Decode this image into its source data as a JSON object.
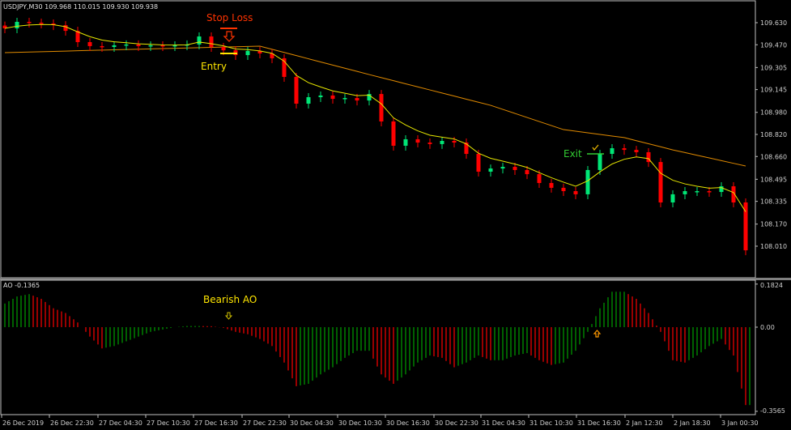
{
  "header": {
    "symbol_info": "USDJPY,M30  109.968 110.015 109.930 109.938"
  },
  "annotations": {
    "stop_loss": "Stop Loss",
    "entry": "Entry",
    "exit": "Exit",
    "bearish_ao": "Bearish AO"
  },
  "colors": {
    "bull": "#00e676",
    "bear": "#ff0000",
    "fast_ma": "#e6e600",
    "slow_ma": "#e08a00",
    "ao_up": "#00a000",
    "ao_down": "#ff0000",
    "stop_loss": "#ff3300",
    "entry": "#ffe600",
    "exit": "#33cc33",
    "grid_axis": "#c0c0c0"
  },
  "chart_data": [
    {
      "type": "candlestick",
      "title": "USDJPY,M30",
      "ylim": [
        107.85,
        109.8
      ],
      "y_ticks": [
        "109.630",
        "109.470",
        "109.305",
        "109.145",
        "108.980",
        "108.820",
        "108.660",
        "108.495",
        "108.335",
        "108.170",
        "108.010"
      ],
      "x_ticks": [
        "26 Dec 2019",
        "26 Dec 22:30",
        "27 Dec 04:30",
        "27 Dec 10:30",
        "27 Dec 16:30",
        "27 Dec 22:30",
        "30 Dec 04:30",
        "30 Dec 10:30",
        "30 Dec 16:30",
        "30 Dec 22:30",
        "31 Dec 04:30",
        "31 Dec 10:30",
        "31 Dec 16:30",
        "2 Jan 12:30",
        "2 Jan 18:30",
        "3 Jan 00:30"
      ],
      "closes": [
        109.589,
        109.636,
        109.63,
        109.624,
        109.612,
        109.571,
        109.489,
        109.46,
        109.454,
        109.466,
        109.472,
        109.46,
        109.466,
        109.46,
        109.466,
        109.472,
        109.53,
        109.454,
        109.43,
        109.395,
        109.425,
        109.407,
        109.372,
        109.237,
        109.043,
        109.09,
        109.102,
        109.078,
        109.084,
        109.066,
        109.113,
        108.914,
        108.738,
        108.785,
        108.761,
        108.75,
        108.773,
        108.761,
        108.679,
        108.55,
        108.573,
        108.585,
        108.562,
        108.532,
        108.468,
        108.433,
        108.409,
        108.386,
        108.562,
        108.679,
        108.72,
        108.708,
        108.691,
        108.62,
        108.327,
        108.386,
        108.409,
        108.409,
        108.403,
        108.444,
        108.327,
        107.98
      ],
      "slow_ma": [
        [
          0,
          109.413
        ],
        [
          21,
          109.46
        ],
        [
          30,
          109.254
        ],
        [
          40,
          109.031
        ],
        [
          46,
          108.855
        ],
        [
          51,
          108.797
        ],
        [
          55,
          108.708
        ],
        [
          61,
          108.591
        ]
      ]
    },
    {
      "type": "bar",
      "title": "AO -0.1365",
      "ylim": [
        -0.3565,
        0.1824
      ],
      "y_ticks": [
        "0.1824",
        "0.00",
        "-0.3565"
      ],
      "values": [
        0.1,
        0.13,
        0.14,
        0.12,
        0.08,
        0.06,
        0.02,
        -0.04,
        -0.09,
        -0.08,
        -0.06,
        -0.04,
        -0.02,
        -0.01,
        0.0,
        0.005,
        0.005,
        0.004,
        -0.003,
        -0.02,
        -0.03,
        -0.05,
        -0.08,
        -0.15,
        -0.25,
        -0.24,
        -0.2,
        -0.17,
        -0.13,
        -0.1,
        -0.1,
        -0.2,
        -0.24,
        -0.2,
        -0.15,
        -0.12,
        -0.13,
        -0.17,
        -0.15,
        -0.12,
        -0.14,
        -0.14,
        -0.12,
        -0.11,
        -0.14,
        -0.16,
        -0.15,
        -0.1,
        -0.02,
        0.08,
        0.15,
        0.15,
        0.12,
        0.06,
        -0.02,
        -0.14,
        -0.15,
        -0.12,
        -0.08,
        -0.05,
        -0.12,
        -0.33
      ]
    }
  ]
}
